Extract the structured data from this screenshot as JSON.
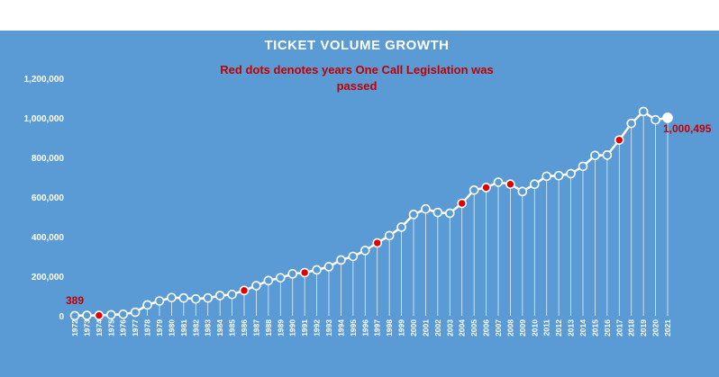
{
  "chart_data": {
    "type": "line",
    "title": "TICKET VOLUME GROWTH",
    "annotation": [
      "Red dots denotes years One Call Legislation was",
      "passed"
    ],
    "xlabel": "",
    "ylabel": "",
    "ylim": [
      0,
      1200000
    ],
    "yticks": [
      0,
      200000,
      400000,
      600000,
      800000,
      1000000,
      1200000
    ],
    "ytick_labels": [
      "0",
      "200,000",
      "400,000",
      "600,000",
      "800,000",
      "1,000,000",
      "1,200,000"
    ],
    "x": [
      1972,
      1973,
      1974,
      1975,
      1976,
      1977,
      1978,
      1979,
      1980,
      1981,
      1982,
      1983,
      1984,
      1985,
      1986,
      1987,
      1988,
      1989,
      1990,
      1991,
      1992,
      1993,
      1994,
      1995,
      1996,
      1997,
      1998,
      1999,
      2000,
      2001,
      2002,
      2003,
      2004,
      2005,
      2006,
      2007,
      2008,
      2009,
      2010,
      2011,
      2012,
      2013,
      2014,
      2015,
      2016,
      2017,
      2018,
      2019,
      2020,
      2021
    ],
    "x_labels": [
      "1972",
      "1973",
      "1974",
      "1975",
      "1976",
      "1977",
      "1978",
      "1979",
      "1980",
      "1981",
      "1982",
      "1983",
      "1984",
      "1985",
      "1986",
      "1987",
      "1988",
      "1989",
      "1990",
      "1991",
      "1992",
      "1993",
      "1994",
      "1995",
      "1996",
      "1997",
      "1998",
      "1999",
      "2000",
      "2001",
      "2002",
      "2003",
      "2004",
      "2005",
      "2006",
      "2007",
      "2008",
      "2009",
      "2010",
      "2011",
      "2012",
      "2013",
      "2014",
      "2015",
      "2016",
      "2017",
      "2018",
      "2019",
      "2020",
      "2021"
    ],
    "series": [
      {
        "name": "Ticket Volume",
        "values": [
          389,
          2000,
          2000,
          5000,
          8000,
          18000,
          55000,
          75000,
          92000,
          90000,
          85000,
          90000,
          102000,
          108000,
          128000,
          152000,
          178000,
          192000,
          212000,
          218000,
          232000,
          248000,
          282000,
          300000,
          330000,
          368000,
          405000,
          448000,
          512000,
          540000,
          522000,
          518000,
          568000,
          635000,
          648000,
          675000,
          665000,
          628000,
          665000,
          705000,
          708000,
          718000,
          755000,
          810000,
          812000,
          888000,
          972000,
          1032000,
          990000,
          1000495
        ]
      }
    ],
    "legislation_years": [
      1974,
      1986,
      1991,
      1997,
      2004,
      2006,
      2008,
      2017
    ],
    "data_labels": [
      {
        "year": 1972,
        "text": "389"
      },
      {
        "year": 2021,
        "text": "1,000,495"
      }
    ],
    "colors": {
      "background": "#5b9bd5",
      "line": "#ffffff",
      "marker_fill": "#5b9bd5",
      "legislation_marker": "#e00000",
      "label": "#c00000"
    }
  }
}
